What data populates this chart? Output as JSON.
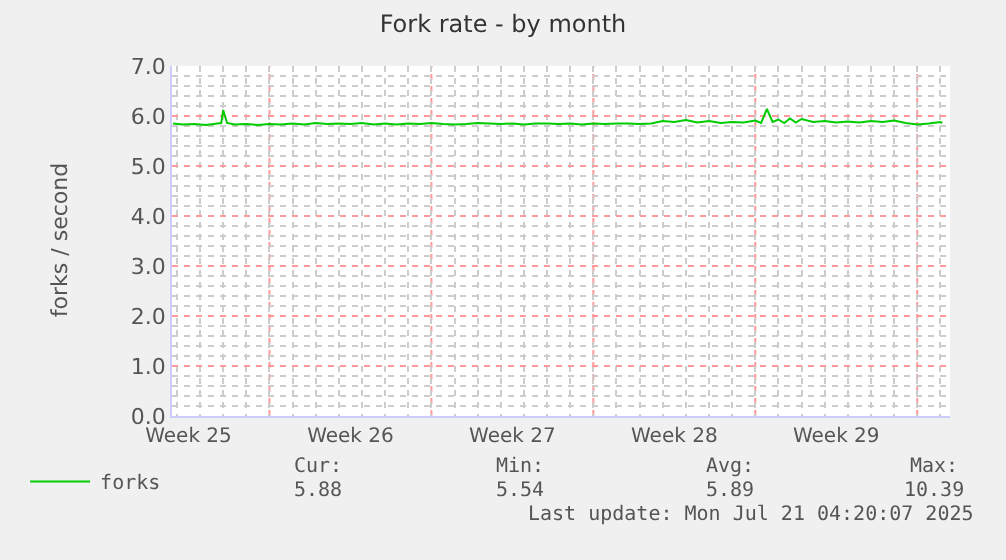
{
  "chart_data": {
    "type": "line",
    "title": "Fork rate - by month",
    "ylabel": "forks / second",
    "x": [
      "2025-06-18T20:00",
      "2025-06-19T06:00",
      "2025-06-19T18:00",
      "2025-06-20T06:00",
      "2025-06-20T18:00",
      "2025-06-20T22:00",
      "2025-06-21T00:00",
      "2025-06-21T04:00",
      "2025-06-21T12:00",
      "2025-06-22T00:00",
      "2025-06-22T12:00",
      "2025-06-23T00:00",
      "2025-06-23T12:00",
      "2025-06-24T00:00",
      "2025-06-24T12:00",
      "2025-06-25T00:00",
      "2025-06-25T12:00",
      "2025-06-26T00:00",
      "2025-06-26T12:00",
      "2025-06-27T00:00",
      "2025-06-27T12:00",
      "2025-06-28T00:00",
      "2025-06-28T12:00",
      "2025-06-29T00:00",
      "2025-06-29T12:00",
      "2025-06-30T00:00",
      "2025-06-30T12:00",
      "2025-07-01T00:00",
      "2025-07-01T12:00",
      "2025-07-02T00:00",
      "2025-07-02T12:00",
      "2025-07-03T00:00",
      "2025-07-03T12:00",
      "2025-07-04T00:00",
      "2025-07-04T12:00",
      "2025-07-05T00:00",
      "2025-07-05T12:00",
      "2025-07-06T00:00",
      "2025-07-06T12:00",
      "2025-07-07T00:00",
      "2025-07-07T12:00",
      "2025-07-08T00:00",
      "2025-07-08T12:00",
      "2025-07-09T00:00",
      "2025-07-09T12:00",
      "2025-07-10T00:00",
      "2025-07-10T12:00",
      "2025-07-11T00:00",
      "2025-07-11T12:00",
      "2025-07-12T00:00",
      "2025-07-12T12:00",
      "2025-07-13T00:00",
      "2025-07-13T12:00",
      "2025-07-14T00:00",
      "2025-07-14T06:00",
      "2025-07-14T12:00",
      "2025-07-14T18:00",
      "2025-07-15T00:00",
      "2025-07-15T06:00",
      "2025-07-15T12:00",
      "2025-07-15T18:00",
      "2025-07-16T00:00",
      "2025-07-16T12:00",
      "2025-07-17T00:00",
      "2025-07-17T12:00",
      "2025-07-18T00:00",
      "2025-07-18T12:00",
      "2025-07-19T00:00",
      "2025-07-19T12:00",
      "2025-07-20T00:00",
      "2025-07-20T12:00",
      "2025-07-21T00:00",
      "2025-07-21T12:00",
      "2025-07-22T00:00",
      "2025-07-22T02:00"
    ],
    "series": [
      {
        "name": "forks",
        "color": "#00cc00",
        "values": [
          5.85,
          5.83,
          5.84,
          5.82,
          5.85,
          5.86,
          6.12,
          5.86,
          5.83,
          5.84,
          5.82,
          5.84,
          5.83,
          5.85,
          5.83,
          5.86,
          5.84,
          5.85,
          5.84,
          5.86,
          5.83,
          5.85,
          5.83,
          5.85,
          5.84,
          5.86,
          5.84,
          5.83,
          5.84,
          5.86,
          5.85,
          5.84,
          5.85,
          5.83,
          5.85,
          5.85,
          5.84,
          5.85,
          5.83,
          5.85,
          5.84,
          5.85,
          5.85,
          5.84,
          5.85,
          5.9,
          5.88,
          5.92,
          5.87,
          5.9,
          5.86,
          5.88,
          5.87,
          5.91,
          5.86,
          6.14,
          5.88,
          5.93,
          5.86,
          5.95,
          5.87,
          5.94,
          5.88,
          5.9,
          5.87,
          5.89,
          5.87,
          5.9,
          5.88,
          5.91,
          5.86,
          5.83,
          5.85,
          5.88,
          5.86
        ]
      }
    ],
    "xlim": [
      "2025-06-18T19:00",
      "2025-07-22T10:00"
    ],
    "xticks": [
      {
        "value": "2025-06-19T12:00",
        "label": "Week 25"
      },
      {
        "value": "2025-06-26T12:00",
        "label": "Week 26"
      },
      {
        "value": "2025-07-03T12:00",
        "label": "Week 27"
      },
      {
        "value": "2025-07-10T12:00",
        "label": "Week 28"
      },
      {
        "value": "2025-07-17T12:00",
        "label": "Week 29"
      },
      {
        "value": "2025-06-23",
        "label": null
      },
      {
        "value": "2025-06-30",
        "label": null
      },
      {
        "value": "2025-07-07",
        "label": null
      },
      {
        "value": "2025-07-14",
        "label": null
      },
      {
        "value": "2025-07-21",
        "label": null
      }
    ],
    "ylim": [
      0,
      7
    ],
    "yticks": [
      {
        "value": 0,
        "label": "0.0"
      },
      {
        "value": 1,
        "label": "1.0"
      },
      {
        "value": 2,
        "label": "2.0"
      },
      {
        "value": 3,
        "label": "3.0"
      },
      {
        "value": 4,
        "label": "4.0"
      },
      {
        "value": 5,
        "label": "5.0"
      },
      {
        "value": 6,
        "label": "6.0"
      },
      {
        "value": 7,
        "label": "7.0"
      }
    ],
    "grid": true,
    "legend": "bottom left",
    "marker": "none",
    "line_style": "solid",
    "annotations": [
      "Cur:",
      "Min:",
      "Avg:",
      "Max:",
      "5.88",
      "5.54",
      "5.89",
      "10.39",
      "Last update: Mon Jul 21 04:20:07 2025"
    ]
  }
}
